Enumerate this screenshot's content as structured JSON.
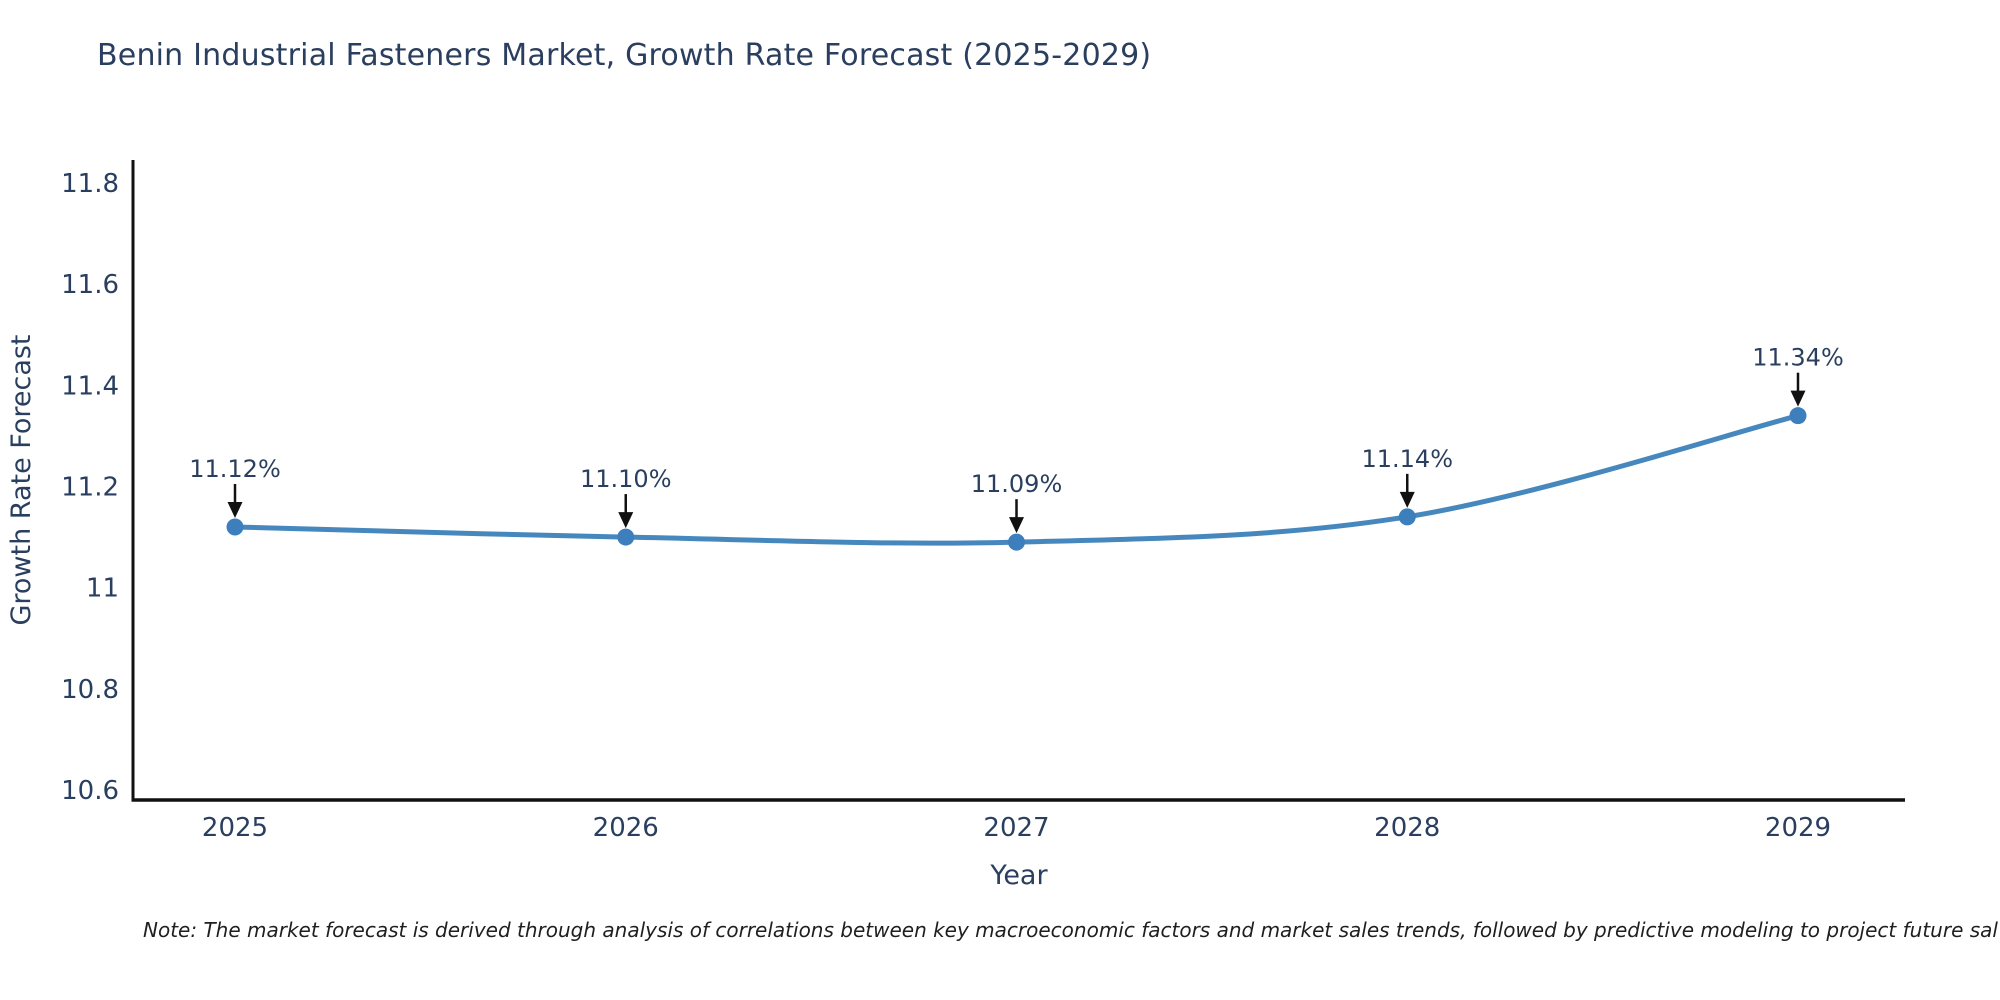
{
  "page": {
    "background": "#ffffff"
  },
  "note": "Note: The market forecast is derived through analysis of correlations between key macroeconomic factors and market sales trends, followed by predictive modeling to project future sal",
  "chart_data": {
    "type": "line",
    "title": "Benin Industrial Fasteners Market, Growth Rate Forecast (2025-2029)",
    "xlabel": "Year",
    "ylabel": "Growth Rate Forecast",
    "categories": [
      "2025",
      "2026",
      "2027",
      "2028",
      "2029"
    ],
    "series": [
      {
        "name": "Growth Rate Forecast",
        "values": [
          11.12,
          11.1,
          11.09,
          11.14,
          11.34
        ]
      }
    ],
    "point_labels": [
      "11.12%",
      "11.10%",
      "11.09%",
      "11.14%",
      "11.34%"
    ],
    "ytick_labels": [
      "10.6",
      "10.8",
      "11",
      "11.2",
      "11.4",
      "11.6",
      "11.8"
    ],
    "ylim": [
      10.55,
      11.85
    ],
    "grid": false,
    "legend": "none",
    "line_shape": "spline",
    "colors": {
      "line": "#4688bd",
      "marker": "#3d7ebd",
      "axis": "#111111",
      "tick_text": "#2a3f5f",
      "axis_title_text": "#2a3f5f",
      "annotation_text": "#2a3f5f",
      "annotation_arrow": "#111111",
      "note_text": "#1f1f1f"
    }
  }
}
